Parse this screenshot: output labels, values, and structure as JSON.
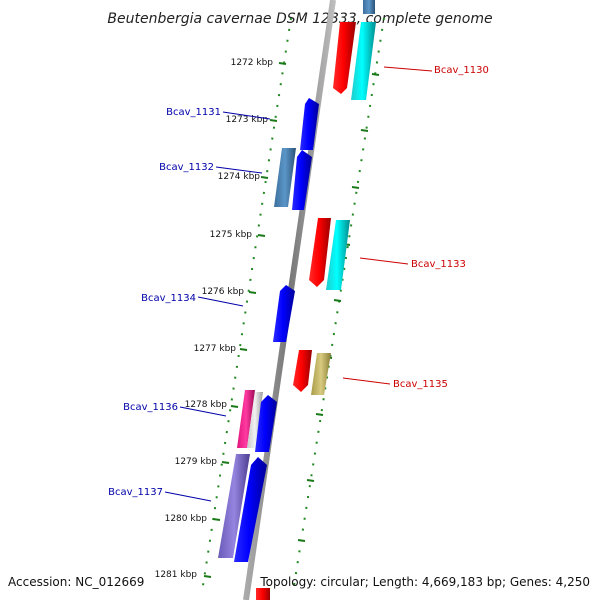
{
  "title": "Beutenbergia cavernae DSM 12333, complete genome",
  "footer": {
    "accession": "Accession: NC_012669",
    "summary": "Topology: circular; Length: 4,669,183 bp; Genes: 4,250"
  },
  "colors": {
    "forward_label": "#cc0000",
    "reverse_label": "#0000aa",
    "backbone": "#888888",
    "tick_dots": "#228822"
  },
  "ticks": [
    "1272 kbp",
    "1273 kbp",
    "1274 kbp",
    "1275 kbp",
    "1276 kbp",
    "1277 kbp",
    "1278 kbp",
    "1279 kbp",
    "1280 kbp",
    "1281 kbp"
  ],
  "genes": [
    {
      "label": "Bcav_1130",
      "strand": "forward"
    },
    {
      "label": "Bcav_1131",
      "strand": "reverse"
    },
    {
      "label": "Bcav_1132",
      "strand": "reverse"
    },
    {
      "label": "Bcav_1133",
      "strand": "forward"
    },
    {
      "label": "Bcav_1134",
      "strand": "reverse"
    },
    {
      "label": "Bcav_1135",
      "strand": "forward"
    },
    {
      "label": "Bcav_1136",
      "strand": "reverse"
    },
    {
      "label": "Bcav_1137",
      "strand": "reverse"
    }
  ]
}
